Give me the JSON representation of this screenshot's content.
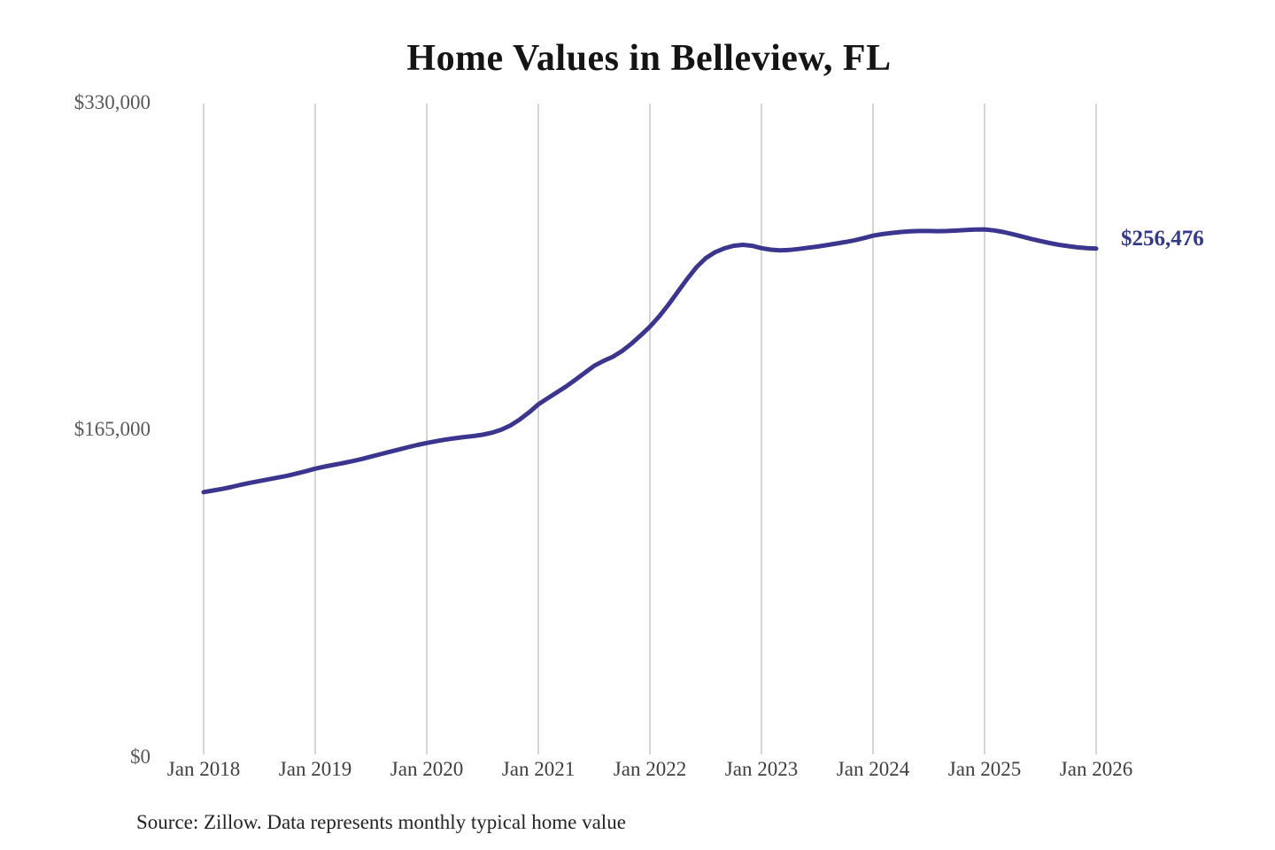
{
  "title": "Home Values in Belleview, FL",
  "source_note": "Source: Zillow. Data represents monthly typical home value",
  "end_label": "$256,476",
  "colors": {
    "line": "#3b3590",
    "end_label": "#333a8c",
    "gridline": "#cbcbcb",
    "title_text": "#141414",
    "x_tick_text": "#3f3f3f",
    "y_tick_text": "#58585a",
    "source_text": "#242424",
    "background": "#ffffff"
  },
  "y_axis": {
    "labels": [
      "$330,000",
      "$165,000",
      "$0"
    ]
  },
  "x_axis": {
    "labels": [
      "Jan 2018",
      "Jan 2019",
      "Jan 2020",
      "Jan 2021",
      "Jan 2022",
      "Jan 2023",
      "Jan 2024",
      "Jan 2025",
      "Jan 2026"
    ]
  },
  "chart_data": {
    "type": "line",
    "title": "Home Values in Belleview, FL",
    "xlabel": "",
    "ylabel": "",
    "x_start": "2018-01",
    "x_end": "2026-01",
    "frequency": "monthly",
    "x_tick_labels": [
      "Jan 2018",
      "Jan 2019",
      "Jan 2020",
      "Jan 2021",
      "Jan 2022",
      "Jan 2023",
      "Jan 2024",
      "Jan 2025",
      "Jan 2026"
    ],
    "y_ticks": [
      0,
      165000,
      330000
    ],
    "ylim": [
      0,
      330000
    ],
    "grid": "vertical-only",
    "legend": "none",
    "annotations": [
      {
        "text": "$256,476",
        "position": "right-of-line-end",
        "color": "#333a8c"
      }
    ],
    "series": [
      {
        "name": "Monthly typical home value",
        "color": "#3b3590",
        "end_value": 256476,
        "values": [
          133000,
          133800,
          134600,
          135600,
          136700,
          137700,
          138600,
          139500,
          140400,
          141300,
          142400,
          143600,
          144900,
          145900,
          146800,
          147700,
          148700,
          149800,
          151000,
          152200,
          153400,
          154600,
          155800,
          156900,
          157900,
          158800,
          159600,
          160300,
          160900,
          161400,
          162100,
          163100,
          164600,
          166800,
          169800,
          173400,
          177500,
          180600,
          183600,
          186600,
          190000,
          193500,
          197000,
          199500,
          201600,
          204500,
          208200,
          212400,
          216900,
          222100,
          228100,
          234600,
          241000,
          247000,
          251600,
          254600,
          256600,
          257900,
          258400,
          257900,
          256700,
          255900,
          255600,
          255800,
          256300,
          256900,
          257500,
          258200,
          259000,
          259800,
          260700,
          261800,
          263000,
          263800,
          264400,
          264900,
          265200,
          265400,
          265400,
          265300,
          265400,
          265600,
          265900,
          266100,
          266200,
          265700,
          264900,
          263800,
          262600,
          261400,
          260300,
          259300,
          258400,
          257700,
          257100,
          256700,
          256476
        ]
      }
    ]
  }
}
